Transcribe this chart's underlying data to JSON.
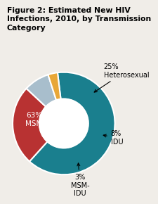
{
  "title": "Figure 2: Estimated New HIV\nInfections, 2010, by Transmission\nCategory",
  "slices": [
    63,
    25,
    8,
    3
  ],
  "colors": [
    "#1a7f8e",
    "#b83232",
    "#a8becc",
    "#e8a737"
  ],
  "background_color": "#f0ede8",
  "title_fontsize": 7.8,
  "label_fontsize": 7.0,
  "msm_label": "63%\nMSM",
  "hetero_label": "25%\nHeterosexual",
  "idu_label": "8%\nIDU",
  "msmidu_label": "3%\nMSM-\nIDU"
}
